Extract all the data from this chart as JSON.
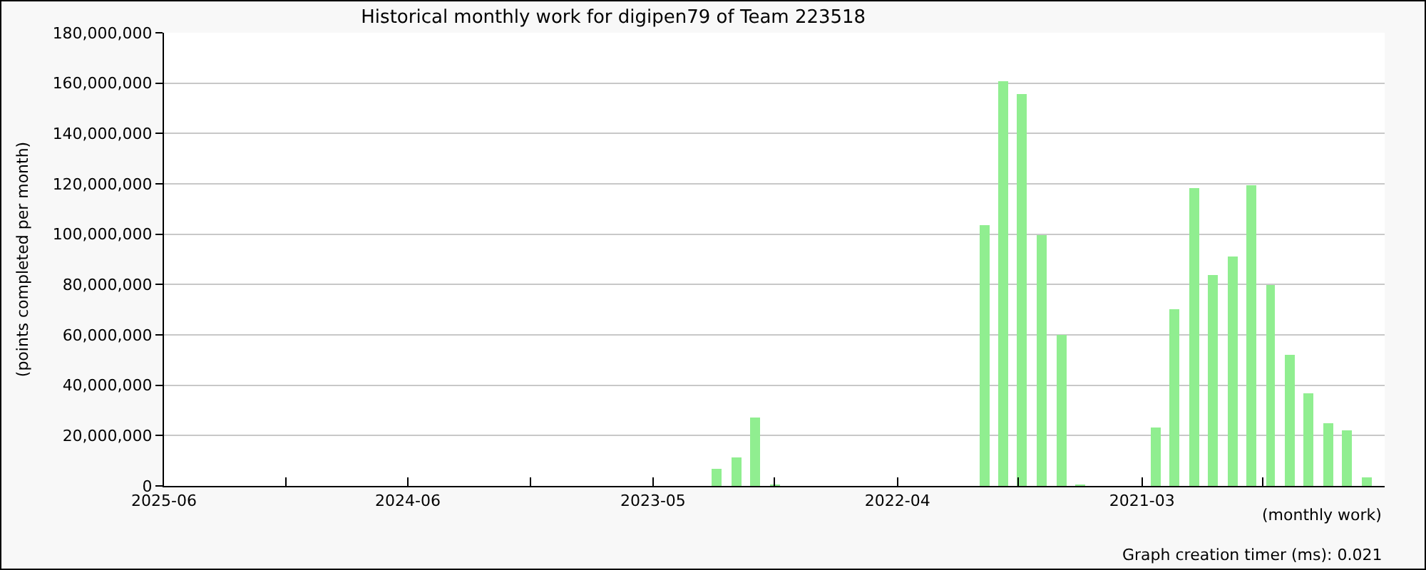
{
  "chart_data": {
    "type": "bar",
    "title": "Historical monthly work for digipen79 of Team 223518",
    "ylabel": "(points completed per month)",
    "xlabel": "(monthly work)",
    "annotations": [
      "Graph creation timer (ms): 0.021"
    ],
    "x": [
      "2023-01",
      "2022-12",
      "2022-11",
      "2022-10",
      "2021-11",
      "2021-10",
      "2021-09",
      "2021-08",
      "2021-07",
      "2021-06",
      "2021-02",
      "2021-01",
      "2020-12",
      "2020-11",
      "2020-10",
      "2020-09",
      "2020-08",
      "2020-07",
      "2020-06",
      "2020-05",
      "2020-04",
      "2020-03"
    ],
    "values": [
      6600000,
      11400000,
      27300000,
      300000,
      103400000,
      160700000,
      155600000,
      99400000,
      60000000,
      500000,
      23300000,
      70400000,
      118100000,
      84000000,
      91400000,
      119600000,
      79900000,
      52200000,
      36900000,
      25000000,
      22100000,
      3400000
    ],
    "color": "#90ee90",
    "xlim": [
      "2025-06-01",
      "2020-02-01"
    ],
    "xticks": [
      {
        "value": "2025-06-01",
        "label": "2025-06"
      },
      {
        "value": "2024-11-19",
        "label": null
      },
      {
        "value": "2024-05-08",
        "label": "2024-06"
      },
      {
        "value": "2023-10-25",
        "label": null
      },
      {
        "value": "2023-04-13",
        "label": "2023-05"
      },
      {
        "value": "2022-10-01",
        "label": null
      },
      {
        "value": "2022-03-19",
        "label": "2022-04"
      },
      {
        "value": "2021-09-07",
        "label": null
      },
      {
        "value": "2021-02-22",
        "label": "2021-03"
      },
      {
        "value": "2020-08-13",
        "label": null
      },
      {
        "value": "2020-02-01",
        "label": null
      }
    ],
    "ylim": [
      0,
      180000000
    ],
    "yticks": [
      0,
      {
        "value": 20000000,
        "label": "20,000,000"
      },
      {
        "value": 40000000,
        "label": "40,000,000"
      },
      {
        "value": 60000000,
        "label": "60,000,000"
      },
      {
        "value": 80000000,
        "label": "80,000,000"
      },
      {
        "value": 100000000,
        "label": "100,000,000"
      },
      {
        "value": 120000000,
        "label": "120,000,000"
      },
      {
        "value": 140000000,
        "label": "140,000,000"
      },
      {
        "value": 160000000,
        "label": "160,000,000"
      },
      {
        "value": 180000000,
        "label": "180,000,000"
      }
    ],
    "grid": "y",
    "legend": false
  }
}
